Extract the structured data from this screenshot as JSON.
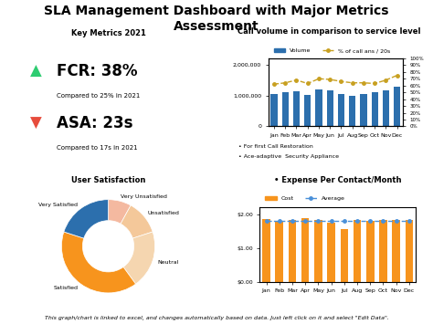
{
  "title": "SLA Management Dashboard with Major Metrics Assessment",
  "annotations": [
    {
      "text": "Key Metrics 2021"
    },
    {
      "text": "▲",
      "color": "#2ecc71"
    },
    {
      "text": "FCR: 38%"
    },
    {
      "text": "Compared to 25% in 2021"
    },
    {
      "text": "▼",
      "color": "#e74c3c"
    },
    {
      "text": "ASA: 23s"
    },
    {
      "text": "Compared to 17s in 2021"
    },
    {
      "text": "This graph/chart is linked to excel, and changes automatically based on data. Just left click on it and select \"Edit Data\"."
    }
  ],
  "chart_data": [
    {
      "type": "bar",
      "title": "Call volume in comparison to service level",
      "categories": [
        "Jan",
        "Feb",
        "Mar",
        "Apr",
        "May",
        "Jun",
        "Jul",
        "Aug",
        "Sep",
        "Oct",
        "Nov",
        "Dec"
      ],
      "series": [
        {
          "name": "Volume",
          "type": "bar",
          "color": "#2c6fad",
          "values": [
            1050000,
            1100000,
            1120000,
            1010000,
            1180000,
            1150000,
            1050000,
            980000,
            1050000,
            1100000,
            1170000,
            1280000
          ]
        },
        {
          "name": "% of call ans / 20s",
          "type": "line",
          "axis": "y2",
          "color": "#c8a020",
          "line_style": "dashed",
          "marker": "o",
          "values": [
            62,
            64,
            68,
            63,
            70,
            69,
            66,
            64,
            64,
            63,
            68,
            75
          ]
        }
      ],
      "ylim": [
        0,
        2200000
      ],
      "yticks": [
        0,
        {
          "value": 1000000,
          "label": "1,000,000"
        },
        {
          "value": 2000000,
          "label": "2,000,000"
        }
      ],
      "y2lim": [
        0,
        100
      ],
      "y2ticks": [
        {
          "value": 0,
          "label": "0%"
        },
        {
          "value": 10,
          "label": "10%"
        },
        {
          "value": 20,
          "label": "20%"
        },
        {
          "value": 30,
          "label": "30%"
        },
        {
          "value": 40,
          "label": "40%"
        },
        {
          "value": 50,
          "label": "50%"
        },
        {
          "value": 60,
          "label": "60%"
        },
        {
          "value": 70,
          "label": "70%"
        },
        {
          "value": 80,
          "label": "80%"
        },
        {
          "value": 90,
          "label": "90%"
        },
        {
          "value": 100,
          "label": "100%"
        }
      ],
      "legend": "upper left",
      "annotations": [
        "• For first Call Restoration",
        "• Ace-adaptive  Security Appliance"
      ]
    },
    {
      "type": "donut",
      "title": "User Satisfaction",
      "categories": [
        "Very Unsatisfied",
        "Unsatisfied",
        "Neutral",
        "Satisfied",
        "Very Satisfied"
      ],
      "values": [
        8,
        12,
        20,
        40,
        20
      ],
      "colors": [
        "#f4b9a0",
        "#f4c89a",
        "#f5d6b0",
        "#f7941d",
        "#2c6fad"
      ]
    },
    {
      "type": "bar",
      "title": "• Expense Per Contact/Month",
      "categories": [
        "Jan",
        "Feb",
        "Mar",
        "Apr",
        "May",
        "Jun",
        "Jul",
        "Aug",
        "Sep",
        "Oct",
        "Nov",
        "Dec"
      ],
      "series": [
        {
          "name": "Cost",
          "type": "bar",
          "color": "#f7941d",
          "values": [
            1.85,
            1.78,
            1.82,
            1.87,
            1.82,
            1.75,
            1.55,
            1.82,
            1.8,
            1.82,
            1.82,
            1.84
          ]
        },
        {
          "name": "Average",
          "type": "line",
          "color": "#4a90d9",
          "line_style": "dashed",
          "marker": "o",
          "values": [
            1.8,
            1.8,
            1.8,
            1.8,
            1.8,
            1.8,
            1.8,
            1.8,
            1.8,
            1.8,
            1.8,
            1.8
          ]
        }
      ],
      "ylim": [
        0,
        2.2
      ],
      "yticks": [
        {
          "value": 0,
          "label": "$0.00"
        },
        {
          "value": 1.0,
          "label": "$1.00"
        },
        {
          "value": 2.0,
          "label": "$2.00"
        }
      ],
      "legend": "upper left"
    }
  ]
}
